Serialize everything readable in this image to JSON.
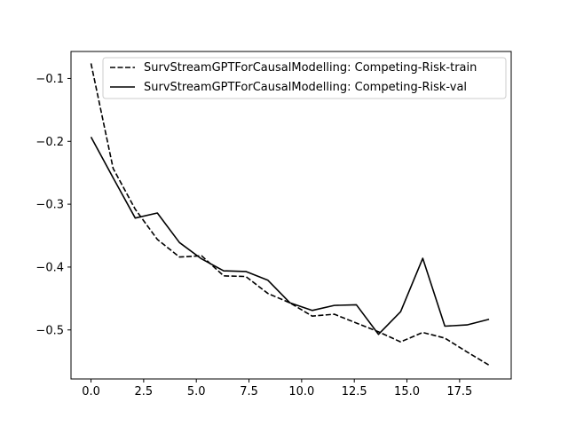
{
  "chart_data": {
    "type": "line",
    "title": "",
    "xlabel": "",
    "ylabel": "",
    "xlim": [
      -0.95,
      19.95
    ],
    "ylim": [
      -0.578,
      -0.057
    ],
    "grid": false,
    "legend_placement": "top-right",
    "x_ticks": [
      0,
      2.5,
      5,
      7.5,
      10,
      12.5,
      15,
      17.5
    ],
    "x_tick_labels": [
      "0.0",
      "2.5",
      "5.0",
      "7.5",
      "10.0",
      "12.5",
      "15.0",
      "17.5"
    ],
    "y_ticks": [
      -0.1,
      -0.2,
      -0.3,
      -0.4,
      -0.5
    ],
    "y_tick_labels": [
      "−0.1",
      "−0.2",
      "−0.3",
      "−0.4",
      "−0.5"
    ],
    "series": [
      {
        "name": "SurvStreamGPTForCausalModelling: Competing-Risk-train",
        "style": "dashed",
        "color": "#000000",
        "x": [
          0,
          1.05,
          2.1,
          3.15,
          4.2,
          5.25,
          6.3,
          7.35,
          8.4,
          9.45,
          10.5,
          11.55,
          12.6,
          13.65,
          14.7,
          15.75,
          16.8,
          17.85,
          18.9
        ],
        "y": [
          -0.076,
          -0.243,
          -0.308,
          -0.356,
          -0.384,
          -0.382,
          -0.414,
          -0.415,
          -0.442,
          -0.457,
          -0.478,
          -0.475,
          -0.489,
          -0.503,
          -0.519,
          -0.504,
          -0.513,
          -0.535,
          -0.556
        ]
      },
      {
        "name": "SurvStreamGPTForCausalModelling: Competing-Risk-val",
        "style": "solid",
        "color": "#000000",
        "x": [
          0,
          1.05,
          2.1,
          3.15,
          4.2,
          5.25,
          6.3,
          7.35,
          8.4,
          9.45,
          10.5,
          11.55,
          12.6,
          13.65,
          14.7,
          15.75,
          16.8,
          17.85,
          18.9
        ],
        "y": [
          -0.193,
          -0.258,
          -0.322,
          -0.314,
          -0.361,
          -0.387,
          -0.406,
          -0.407,
          -0.421,
          -0.457,
          -0.469,
          -0.461,
          -0.46,
          -0.507,
          -0.471,
          -0.386,
          -0.494,
          -0.492,
          -0.483
        ]
      }
    ]
  }
}
